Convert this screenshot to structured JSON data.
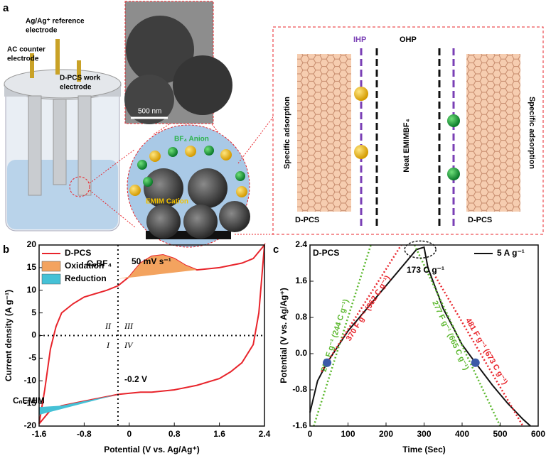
{
  "panel_a": {
    "letter": "a",
    "electrodes": [
      {
        "lines": [
          "Ag/Ag⁺ reference",
          "electrode"
        ]
      },
      {
        "lines": [
          "AC counter",
          "electrode"
        ]
      },
      {
        "lines": [
          "D-PCS work",
          "electrode"
        ]
      }
    ],
    "scale_bar": "500 nm",
    "anion": "BF₄ Anion",
    "cation": "EMIM Cation",
    "ihp": "IHP",
    "ohp": "OHP",
    "specific_adsorption": [
      "Specific adsorption",
      "Specific adsorption"
    ],
    "neat": "Neat EMIMBF₄",
    "electrode_labels": [
      "D-PCS",
      "D-PCS"
    ]
  },
  "chart_data": [
    {
      "type": "line",
      "letter": "b",
      "x_label": "Potential (V vs. Ag/Ag⁺)",
      "y_label": "Current density (A g⁻¹)",
      "xlim": [
        -1.6,
        2.4
      ],
      "xticks": [
        -1.6,
        -0.8,
        0,
        0.8,
        1.6,
        2.4
      ],
      "ylim": [
        -20,
        20
      ],
      "yticks": [
        -20,
        -15,
        -10,
        -5,
        0,
        5,
        10,
        15,
        20
      ],
      "legend": "upper left",
      "series": [
        {
          "name": "D-PCS",
          "color": "#e8242b",
          "fill": false,
          "x": [
            -1.6,
            -1.5,
            -1.4,
            -1.3,
            -1.2,
            -1.0,
            -0.8,
            -0.4,
            -0.2,
            0,
            0.2,
            0.4,
            0.6,
            0.8,
            1.0,
            1.2,
            1.6,
            2.0,
            2.2,
            2.4,
            2.3,
            2.2,
            2.0,
            1.8,
            1.6,
            1.2,
            0.8,
            0.4,
            0.2,
            -0.2,
            -0.4,
            -0.8,
            -1.2,
            -1.4,
            -1.6
          ],
          "values": [
            -19.5,
            -12,
            -3,
            2,
            5,
            7,
            8.5,
            10,
            11,
            13,
            16,
            17.5,
            17.8,
            17,
            15.5,
            14.5,
            15,
            16,
            17,
            20,
            5,
            -2,
            -6,
            -8,
            -9.5,
            -11,
            -12,
            -12.5,
            -12.5,
            -13,
            -13.5,
            -14.5,
            -15.5,
            -16.5,
            -19.5
          ]
        },
        {
          "name": "Oxidation",
          "color": "#f3a35f",
          "fill": true,
          "x": [
            -0.2,
            0,
            0.2,
            0.4,
            0.6,
            0.8,
            1.0,
            1.2
          ],
          "values": [
            12.5,
            13,
            16,
            17.5,
            17.8,
            17,
            15.5,
            14.5
          ]
        },
        {
          "name": "Reduction",
          "color": "#45c1d6",
          "fill": true,
          "x": [
            -1.6,
            -1.6,
            -1.2,
            -0.8,
            -0.4,
            -0.2
          ],
          "values": [
            -17.5,
            -15.8,
            -15.5,
            -14.5,
            -13.5,
            -13
          ]
        }
      ],
      "vline": -0.2,
      "hline": 0,
      "annotations": [
        "CₙBF₄",
        "50 mV s⁻¹",
        "CₙEMIM",
        "-0.2 V",
        "II",
        "III",
        "I",
        "IV"
      ]
    },
    {
      "type": "line",
      "letter": "c",
      "x_label": "Time (Sec)",
      "y_label": "Potential (V vs. Ag/Ag⁺)",
      "xlim": [
        0,
        600
      ],
      "xticks": [
        0,
        100,
        200,
        300,
        400,
        500,
        600
      ],
      "ylim": [
        -1.6,
        2.4
      ],
      "yticks": [
        -1.6,
        -0.8,
        {
          "value": 0,
          "label": "0.0"
        },
        0.8,
        1.6,
        2.4
      ],
      "legend": "upper right",
      "series": [
        {
          "name": "5 A g⁻¹",
          "color": "#111111",
          "fill": false,
          "x": [
            0,
            20,
            45,
            100,
            150,
            200,
            250,
            280,
            300,
            310,
            350,
            400,
            435,
            480,
            520,
            560,
            580
          ],
          "values": [
            -1.3,
            -0.6,
            -0.2,
            0.5,
            1.0,
            1.5,
            2.0,
            2.3,
            2.35,
            1.9,
            1.0,
            0.2,
            -0.2,
            -0.7,
            -1.1,
            -1.45,
            -1.6
          ]
        }
      ],
      "points": {
        "color": "#3b5aa8",
        "x": [
          45,
          435
        ],
        "values": [
          -0.2,
          -0.2
        ]
      },
      "fit_lines": [
        {
          "label": "203 F g⁻¹ (244 C g⁻¹)",
          "color": "#5cb82e",
          "x": [
            10,
            160
          ],
          "values": [
            -1.6,
            2.4
          ]
        },
        {
          "label": "370 F g⁻¹ (962 C g⁻¹)",
          "color": "#e8242b",
          "x": [
            30,
            240
          ],
          "values": [
            -0.4,
            2.4
          ]
        },
        {
          "label": "277 F g⁻¹ (665 C g⁻¹)",
          "color": "#5cb82e",
          "x": [
            275,
            500
          ],
          "values": [
            2.4,
            -1.6
          ]
        },
        {
          "label": "481 F g⁻¹ (673 C g⁻¹)",
          "color": "#e8242b",
          "x": [
            330,
            560
          ],
          "values": [
            1.7,
            -1.6
          ]
        }
      ],
      "annotations": [
        "D-PCS",
        "173 C g⁻¹"
      ]
    }
  ]
}
